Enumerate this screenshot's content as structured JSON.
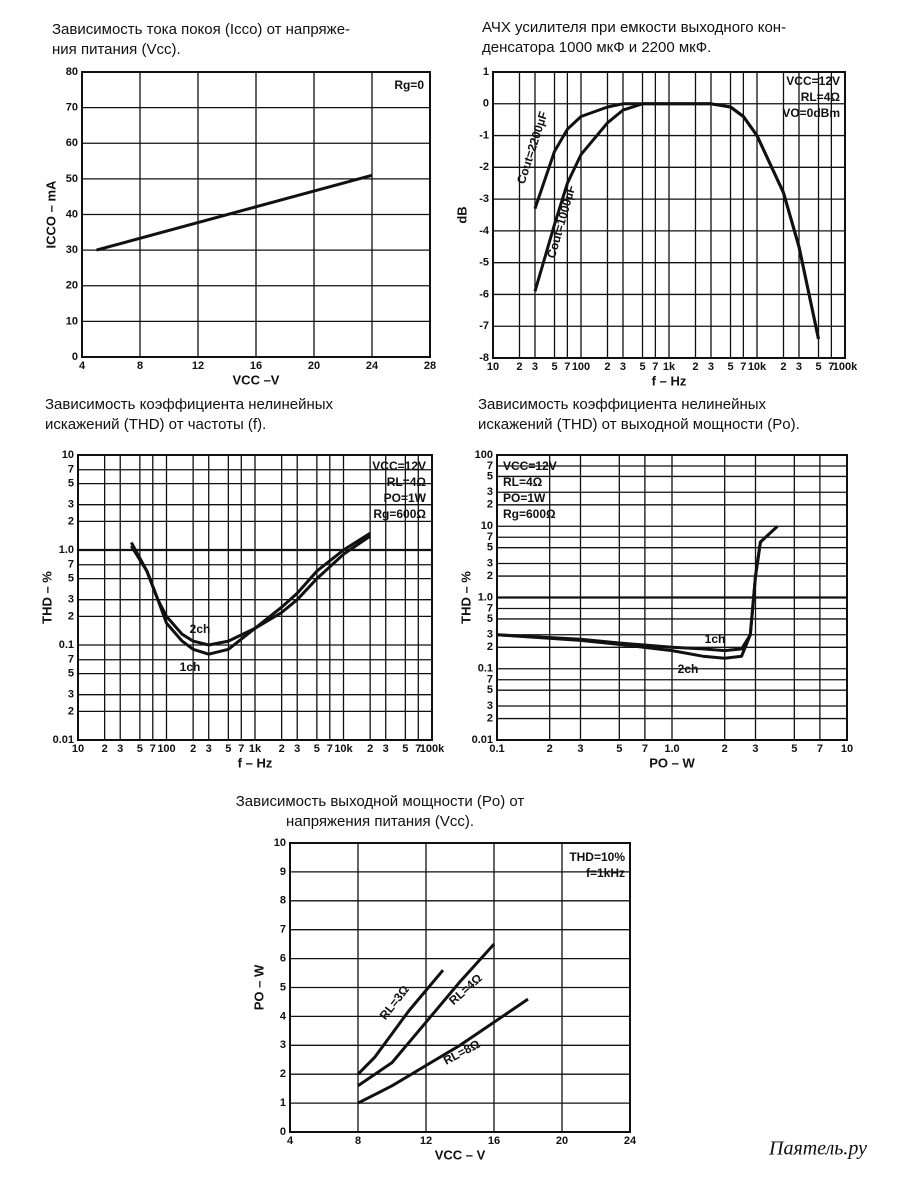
{
  "chart_data": [
    {
      "type": "line",
      "title": [
        "Зависимость тока покоя (Icco) от напряже-",
        "ния питания (Vcc)."
      ],
      "x_label": "VCC –V",
      "y_label": "ICCO – mA",
      "annotations": [
        "Rg=0"
      ],
      "x": [
        5,
        24
      ],
      "series": [
        {
          "name": null,
          "color": "#111111",
          "values": [
            30,
            51
          ]
        }
      ],
      "xlim": [
        4,
        28
      ],
      "xticks": [
        4,
        8,
        12,
        16,
        20,
        24,
        28
      ],
      "ylim": [
        0,
        80
      ],
      "yticks": [
        0,
        10,
        20,
        30,
        40,
        50,
        60,
        70,
        80
      ],
      "grid": true,
      "legend": "on-curve"
    },
    {
      "type": "line",
      "title": [
        "АЧХ усилителя при емкости выходного кон-",
        "денсатора 1000 мкФ и 2200 мкФ."
      ],
      "x_label": "f – Hz",
      "y_label": "dB",
      "annotations": [
        "VCC=12V",
        "RL=4Ω",
        "VO=0dBm"
      ],
      "x": [
        30,
        50,
        70,
        100,
        200,
        300,
        500,
        1000,
        3000,
        5000,
        7000,
        10000,
        20000,
        30000,
        50000
      ],
      "series": [
        {
          "name": "Cout=2200µF",
          "color": "#111111",
          "values": [
            -3.3,
            -1.5,
            -0.8,
            -0.4,
            -0.1,
            0,
            0,
            0,
            0,
            -0.1,
            -0.4,
            -1.0,
            -2.8,
            -4.5,
            -7.4
          ]
        },
        {
          "name": "Cout=1000µF",
          "color": "#111111",
          "values": [
            -5.9,
            -3.8,
            -2.5,
            -1.6,
            -0.6,
            -0.2,
            0,
            0,
            0,
            -0.1,
            -0.4,
            -1.0,
            -2.8,
            -4.5,
            -7.4
          ]
        }
      ],
      "log_x": true,
      "xlim": [
        10,
        100000
      ],
      "xticks": [
        10,
        {
          "value": 20,
          "label": "2"
        },
        {
          "value": 30,
          "label": "3"
        },
        {
          "value": 50,
          "label": "5"
        },
        {
          "value": 70,
          "label": "7"
        },
        100,
        {
          "value": 200,
          "label": "2"
        },
        {
          "value": 300,
          "label": "3"
        },
        {
          "value": 500,
          "label": "5"
        },
        {
          "value": 700,
          "label": "7"
        },
        {
          "value": 1000,
          "label": "1k"
        },
        {
          "value": 2000,
          "label": "2"
        },
        {
          "value": 3000,
          "label": "3"
        },
        {
          "value": 5000,
          "label": "5"
        },
        {
          "value": 7000,
          "label": "7"
        },
        {
          "value": 10000,
          "label": "10k"
        },
        {
          "value": 20000,
          "label": "2"
        },
        {
          "value": 30000,
          "label": "3"
        },
        {
          "value": 50000,
          "label": "5"
        },
        {
          "value": 70000,
          "label": "7"
        },
        {
          "value": 100000,
          "label": "100k"
        }
      ],
      "ylim": [
        -8,
        1
      ],
      "yticks": [
        -8,
        -7,
        -6,
        -5,
        -4,
        -3,
        -2,
        -1,
        0,
        1
      ],
      "grid": true,
      "legend": "on-curve"
    },
    {
      "type": "line",
      "title": [
        "Зависимость коэффициента нелинейных",
        "искажений (THD) от частоты (f)."
      ],
      "x_label": "f – Hz",
      "y_label": "THD – %",
      "annotations": [
        "VCC=12V",
        "RL=4Ω",
        "PO=1W",
        "Rg=600Ω"
      ],
      "x": [
        40,
        60,
        80,
        100,
        150,
        200,
        300,
        500,
        1000,
        2000,
        3000,
        5000,
        10000,
        20000
      ],
      "series": [
        {
          "name": "1ch",
          "color": "#111111",
          "values": [
            1.1,
            0.6,
            0.3,
            0.17,
            0.11,
            0.09,
            0.08,
            0.09,
            0.15,
            0.25,
            0.35,
            0.6,
            1.0,
            1.5
          ]
        },
        {
          "name": "2ch",
          "color": "#111111",
          "values": [
            1.2,
            0.6,
            0.3,
            0.2,
            0.13,
            0.11,
            0.1,
            0.11,
            0.15,
            0.22,
            0.3,
            0.5,
            0.9,
            1.4
          ]
        }
      ],
      "log_x": true,
      "log_y": true,
      "xlim": [
        10,
        100000
      ],
      "xticks": [
        10,
        {
          "value": 20,
          "label": "2"
        },
        {
          "value": 30,
          "label": "3"
        },
        {
          "value": 50,
          "label": "5"
        },
        {
          "value": 70,
          "label": "7"
        },
        100,
        {
          "value": 200,
          "label": "2"
        },
        {
          "value": 300,
          "label": "3"
        },
        {
          "value": 500,
          "label": "5"
        },
        {
          "value": 700,
          "label": "7"
        },
        {
          "value": 1000,
          "label": "1k"
        },
        {
          "value": 2000,
          "label": "2"
        },
        {
          "value": 3000,
          "label": "3"
        },
        {
          "value": 5000,
          "label": "5"
        },
        {
          "value": 7000,
          "label": "7"
        },
        {
          "value": 10000,
          "label": "10k"
        },
        {
          "value": 20000,
          "label": "2"
        },
        {
          "value": 30000,
          "label": "3"
        },
        {
          "value": 50000,
          "label": "5"
        },
        {
          "value": 70000,
          "label": "7"
        },
        {
          "value": 100000,
          "label": "100k"
        }
      ],
      "ylim": [
        0.01,
        10
      ],
      "yticks": [
        0.01,
        {
          "value": 0.02,
          "label": "2"
        },
        {
          "value": 0.03,
          "label": "3"
        },
        {
          "value": 0.05,
          "label": "5"
        },
        {
          "value": 0.07,
          "label": "7"
        },
        0.1,
        {
          "value": 0.2,
          "label": "2"
        },
        {
          "value": 0.3,
          "label": "3"
        },
        {
          "value": 0.5,
          "label": "5"
        },
        {
          "value": 0.7,
          "label": "7"
        },
        {
          "value": 1,
          "label": "1.0"
        },
        2,
        3,
        5,
        7,
        10
      ],
      "grid": true,
      "legend": "on-curve"
    },
    {
      "type": "line",
      "title": [
        "Зависимость коэффициента нелинейных",
        "искажений (THD) от выходной мощности (Po)."
      ],
      "x_label": "PO – W",
      "y_label": "THD – %",
      "annotations": [
        "VCC=12V",
        "RL=4Ω",
        "PO=1W",
        "Rg=600Ω"
      ],
      "x": [
        0.1,
        0.3,
        0.5,
        1,
        1.5,
        2,
        2.5,
        2.8,
        3,
        3.2,
        4
      ],
      "series": [
        {
          "name": "1ch",
          "color": "#111111",
          "values": [
            0.3,
            0.26,
            0.23,
            0.2,
            0.19,
            0.18,
            0.19,
            0.3,
            2,
            6,
            10
          ]
        },
        {
          "name": "2ch",
          "color": "#111111",
          "values": [
            0.3,
            0.25,
            0.22,
            0.18,
            0.15,
            0.14,
            0.15,
            0.3,
            2,
            6,
            10
          ]
        }
      ],
      "log_x": true,
      "log_y": true,
      "xlim": [
        0.1,
        10
      ],
      "xticks": [
        0.1,
        {
          "value": 0.2,
          "label": "2"
        },
        {
          "value": 0.3,
          "label": "3"
        },
        {
          "value": 0.5,
          "label": "5"
        },
        {
          "value": 0.7,
          "label": "7"
        },
        {
          "value": 1,
          "label": "1.0"
        },
        2,
        3,
        5,
        7,
        10
      ],
      "ylim": [
        0.01,
        100
      ],
      "yticks": [
        0.01,
        {
          "value": 0.02,
          "label": "2"
        },
        {
          "value": 0.03,
          "label": "3"
        },
        {
          "value": 0.05,
          "label": "5"
        },
        {
          "value": 0.07,
          "label": "7"
        },
        0.1,
        {
          "value": 0.2,
          "label": "2"
        },
        {
          "value": 0.3,
          "label": "3"
        },
        {
          "value": 0.5,
          "label": "5"
        },
        {
          "value": 0.7,
          "label": "7"
        },
        {
          "value": 1,
          "label": "1.0"
        },
        2,
        3,
        5,
        7,
        10,
        {
          "value": 20,
          "label": "2"
        },
        {
          "value": 30,
          "label": "3"
        },
        {
          "value": 50,
          "label": "5"
        },
        {
          "value": 70,
          "label": "7"
        },
        100
      ],
      "grid": true,
      "legend": "on-curve"
    },
    {
      "type": "line",
      "title": [
        "Зависимость выходной мощности (Po) от",
        "напряжения питания (Vcc)."
      ],
      "x_label": "VCC – V",
      "y_label": "PO – W",
      "annotations": [
        "THD=10%",
        "f=1kHz"
      ],
      "series": [
        {
          "name": "RL=3Ω",
          "color": "#111111",
          "x": [
            8,
            9,
            10,
            11,
            12,
            13
          ],
          "values": [
            2,
            2.6,
            3.4,
            4.2,
            4.9,
            5.6
          ]
        },
        {
          "name": "RL=4Ω",
          "color": "#111111",
          "x": [
            8,
            10,
            12,
            14,
            16
          ],
          "values": [
            1.6,
            2.4,
            3.8,
            5.2,
            6.5
          ]
        },
        {
          "name": "RL=8Ω",
          "color": "#111111",
          "x": [
            8,
            10,
            12,
            14,
            16,
            18
          ],
          "values": [
            1,
            1.6,
            2.3,
            3,
            3.8,
            4.6
          ]
        }
      ],
      "xlim": [
        4,
        24
      ],
      "xticks": [
        4,
        8,
        12,
        16,
        20,
        24
      ],
      "ylim": [
        0,
        10
      ],
      "yticks": [
        0,
        1,
        2,
        3,
        4,
        5,
        6,
        7,
        8,
        9,
        10
      ],
      "grid": true,
      "legend": "on-curve"
    }
  ],
  "watermark": "Паятель.ру"
}
